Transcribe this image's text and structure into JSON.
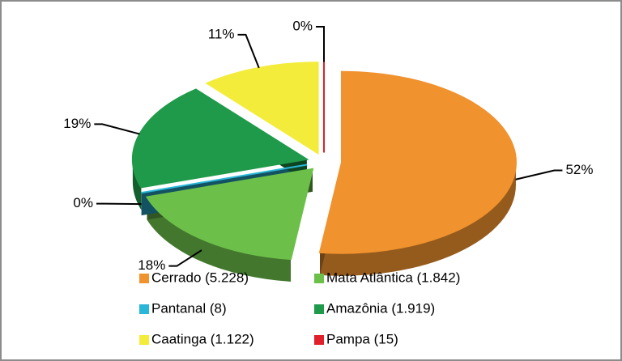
{
  "chart_data": {
    "type": "pie",
    "categories": [
      "Cerrado (5.228)",
      "Mata Atlântica (1.842)",
      "Pantanal (8)",
      "Amazônia (1.919)",
      "Caatinga (1.122)",
      "Pampa (15)"
    ],
    "values": [
      52,
      18,
      0,
      19,
      11,
      0
    ],
    "value_labels": [
      "52%",
      "18%",
      "0%",
      "19%",
      "11%",
      "0%"
    ],
    "colors": [
      "#f0922e",
      "#6cc04a",
      "#29b6d8",
      "#1f9a4a",
      "#f4ec3a",
      "#e0202a"
    ],
    "legend": "bottom"
  }
}
